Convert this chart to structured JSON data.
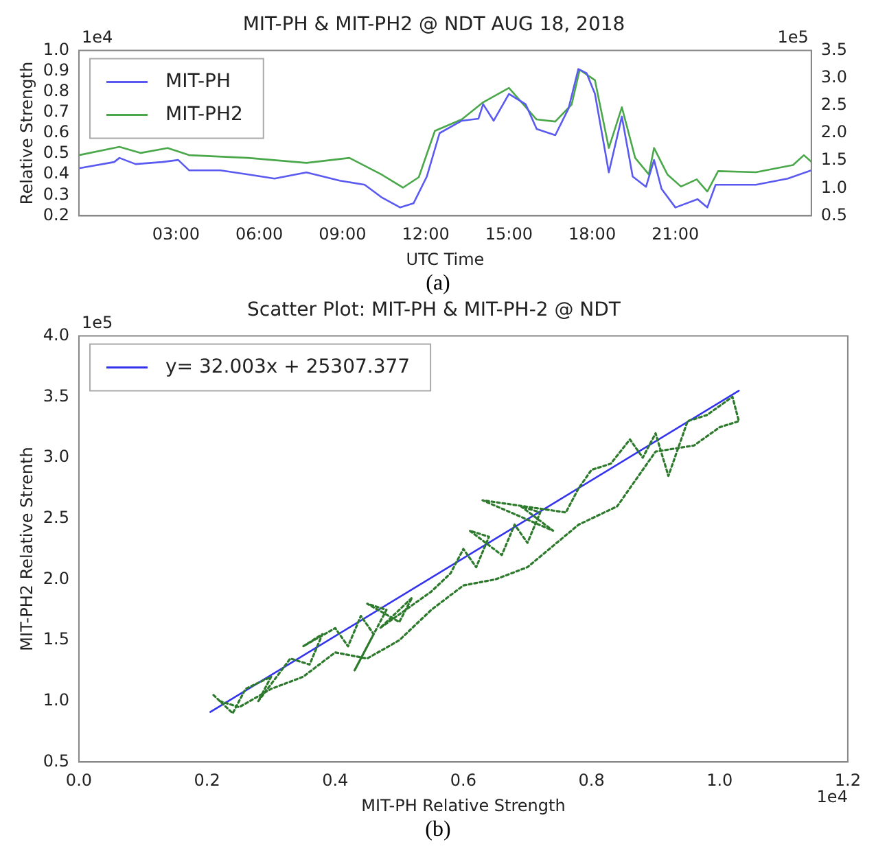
{
  "chart_data": [
    {
      "type": "line",
      "title": "MIT-PH & MIT-PH2 @ NDT AUG 18, 2018",
      "xlabel": "UTC Time",
      "ylabel": "Relative Strength",
      "annotations": [
        "1e4",
        "1e5",
        "(a)"
      ],
      "x": [
        -0.5,
        0.77,
        0.96,
        1.54,
        2.5,
        3.08,
        3.47,
        4.6,
        5.6,
        6.55,
        7.7,
        8.9,
        9.8,
        10.4,
        11.08,
        11.56,
        12.04,
        12.5,
        13.3,
        13.9,
        14.07,
        14.45,
        15.0,
        15.6,
        16.0,
        16.67,
        17.15,
        17.5,
        17.8,
        18.1,
        18.6,
        19.07,
        19.46,
        19.94,
        20.23,
        20.5,
        21.0,
        21.8,
        22.15,
        22.45,
        23.9,
        25.05,
        25.9
      ],
      "series": [
        {
          "name": "MIT-PH",
          "color": "#5a5af0",
          "values": [
            0.43,
            0.46,
            0.48,
            0.45,
            0.46,
            0.47,
            0.42,
            0.42,
            0.4,
            0.38,
            0.41,
            0.37,
            0.35,
            0.29,
            0.24,
            0.26,
            0.39,
            0.6,
            0.66,
            0.67,
            0.74,
            0.66,
            0.79,
            0.74,
            0.62,
            0.59,
            0.72,
            0.91,
            0.89,
            0.79,
            0.41,
            0.68,
            0.39,
            0.34,
            0.47,
            0.33,
            0.24,
            0.28,
            0.24,
            0.35,
            0.35,
            0.38,
            0.42
          ]
        },
        {
          "name": "MIT-PH2",
          "color": "#4aa84a",
          "axis": "y2",
          "x": [
            -0.5,
            0.96,
            1.73,
            2.7,
            3.47,
            5.6,
            7.7,
            9.25,
            10.4,
            11.18,
            11.75,
            12.33,
            13.3,
            14.07,
            15.0,
            15.99,
            16.67,
            17.26,
            17.55,
            18.1,
            18.6,
            19.07,
            19.55,
            20.04,
            20.23,
            20.71,
            21.2,
            21.77,
            22.15,
            22.54,
            23.9,
            25.24,
            25.63,
            25.9
          ],
          "values": [
            1.6,
            1.75,
            1.64,
            1.73,
            1.6,
            1.55,
            1.46,
            1.55,
            1.25,
            1.01,
            1.2,
            2.04,
            2.25,
            2.56,
            2.82,
            2.25,
            2.21,
            2.52,
            3.15,
            2.96,
            1.73,
            2.47,
            1.55,
            1.25,
            1.73,
            1.25,
            1.03,
            1.16,
            0.94,
            1.31,
            1.29,
            1.42,
            1.6,
            1.48
          ]
        }
      ],
      "xlim": [
        -0.5,
        25.9
      ],
      "xticks": [
        {
          "value": 3,
          "label": "03:00"
        },
        {
          "value": 6,
          "label": "06:00"
        },
        {
          "value": 9,
          "label": "09:00"
        },
        {
          "value": 12,
          "label": "12:00"
        },
        {
          "value": 15,
          "label": "15:00"
        },
        {
          "value": 18,
          "label": "18:00"
        },
        {
          "value": 21,
          "label": "21:00"
        }
      ],
      "ylim": [
        0.2,
        1.0
      ],
      "yticks": [
        0.2,
        0.3,
        0.4,
        0.5,
        0.6,
        0.7,
        0.8,
        0.9,
        {
          "value": 1.0,
          "label": "1.0"
        }
      ],
      "y2lim": [
        0.5,
        3.5
      ],
      "y2ticks": [
        0.5,
        {
          "value": 1.0,
          "label": "1.0"
        },
        1.5,
        {
          "value": 2.0,
          "label": "2.0"
        },
        2.5,
        {
          "value": 3.0,
          "label": "3.0"
        },
        3.5
      ],
      "legend": "top left",
      "grid": false,
      "marker": "none",
      "line_style": "solid"
    },
    {
      "type": "line",
      "title": "Scatter Plot: MIT-PH & MIT-PH-2 @ NDT",
      "xlabel": "MIT-PH Relative Strength",
      "ylabel": "MIT-PH2 Relative Strenth",
      "annotations": [
        "1e5",
        "1e4",
        "(b)"
      ],
      "series": [
        {
          "color": "#2d7a2d",
          "line_style": "dotted",
          "x": [
            0.21,
            0.24,
            0.26,
            0.3,
            0.28,
            0.33,
            0.36,
            0.38,
            0.35,
            0.4,
            0.42,
            0.44,
            0.46,
            0.43,
            0.48,
            0.45,
            0.5,
            0.52,
            0.47,
            0.55,
            0.58,
            0.6,
            0.62,
            0.64,
            0.61,
            0.66,
            0.68,
            0.7,
            0.72,
            0.69,
            0.74,
            0.63,
            0.76,
            0.78,
            0.8,
            0.83,
            0.86,
            0.88,
            0.9,
            0.92,
            0.95,
            0.98,
            1.02,
            1.03,
            1.0,
            0.96,
            0.9,
            0.84,
            0.78,
            0.7,
            0.65,
            0.6,
            0.55,
            0.5,
            0.45,
            0.4,
            0.35,
            0.3,
            0.25,
            0.22
          ],
          "values": [
            1.05,
            0.9,
            1.1,
            1.2,
            1.0,
            1.35,
            1.3,
            1.55,
            1.45,
            1.6,
            1.45,
            1.7,
            1.55,
            1.25,
            1.75,
            1.8,
            1.65,
            1.85,
            1.6,
            1.9,
            2.05,
            2.25,
            2.1,
            2.35,
            2.4,
            2.2,
            2.45,
            2.3,
            2.55,
            2.6,
            2.4,
            2.65,
            2.55,
            2.75,
            2.9,
            2.95,
            3.15,
            3.0,
            3.2,
            2.85,
            3.3,
            3.35,
            3.5,
            3.3,
            3.25,
            3.1,
            3.05,
            2.6,
            2.45,
            2.1,
            2.0,
            1.95,
            1.75,
            1.5,
            1.35,
            1.4,
            1.2,
            1.1,
            0.95,
            1.0
          ]
        },
        {
          "name": "y= 32.003x + 25307.377",
          "color": "#3333ee",
          "line_style": "solid",
          "x": [
            0.205,
            1.03
          ],
          "values": [
            0.91,
            3.55
          ]
        }
      ],
      "xlim": [
        0.0,
        1.2
      ],
      "xticks": [
        {
          "value": 0,
          "label": "0.0"
        },
        0.2,
        0.4,
        0.6,
        0.8,
        {
          "value": 1.0,
          "label": "1.0"
        },
        1.2
      ],
      "ylim": [
        0.5,
        4.0
      ],
      "yticks": [
        0.5,
        {
          "value": 1.0,
          "label": "1.0"
        },
        1.5,
        {
          "value": 2.0,
          "label": "2.0"
        },
        2.5,
        {
          "value": 3.0,
          "label": "3.0"
        },
        3.5,
        {
          "value": 4.0,
          "label": "4.0"
        }
      ],
      "legend": "top left",
      "grid": false,
      "marker": "none"
    }
  ]
}
